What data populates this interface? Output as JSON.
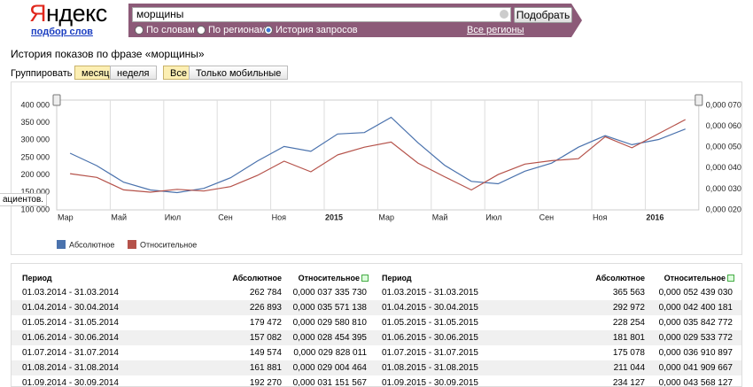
{
  "header": {
    "logo": "Яндекс",
    "subtitle": "подбор слов",
    "query": "морщины",
    "button": "Подобрать",
    "options": [
      "По словам",
      "По регионам",
      "История запросов"
    ],
    "selected_option": 2,
    "regions": "Все регионы"
  },
  "page_title": "История показов по фразе «морщины»",
  "grouping": {
    "label": "Группировать по:",
    "options": [
      "месяц",
      "неделя"
    ],
    "active": 0
  },
  "device": {
    "options": [
      "Все",
      "Только мобильные"
    ],
    "active": 0
  },
  "tooltip_fragment": "ациентов.",
  "chart_data": {
    "type": "line",
    "categories": [
      "Мар",
      null,
      "Май",
      null,
      "Июл",
      null,
      "Сен",
      null,
      "Ноя",
      null,
      "2015",
      null,
      "Мар",
      null,
      "Май",
      null,
      "Июл",
      null,
      "Сен",
      null,
      "Ноя",
      null,
      "2016",
      null
    ],
    "series": [
      {
        "name": "Абсолютное",
        "color": "#4a72ad",
        "axis": "y",
        "values": [
          262784,
          226893,
          179472,
          157082,
          149574,
          161881,
          192270,
          240000,
          282000,
          268000,
          318000,
          322000,
          365563,
          292972,
          228254,
          181801,
          175078,
          211044,
          234127,
          280000,
          313000,
          287000,
          302000,
          332000
        ]
      },
      {
        "name": "Относительное",
        "color": "#b5524a",
        "axis": "y2",
        "values": [
          3.733573e-05,
          3.557114e-05,
          2.958081e-05,
          2.84544e-05,
          2.9828e-05,
          2.900446e-05,
          3.115157e-05,
          3.65e-05,
          4.33e-05,
          3.82e-05,
          4.63e-05,
          5e-05,
          5.243903e-05,
          4.240018e-05,
          3.584277e-05,
          2.953377e-05,
          3.69109e-05,
          4.190967e-05,
          4.356813e-05,
          4.45e-05,
          5.5e-05,
          4.97e-05,
          5.65e-05,
          6.32e-05
        ]
      }
    ],
    "ylim": [
      100000,
      400000
    ],
    "yticks": [
      {
        "value": 100000,
        "label": "100 000"
      },
      {
        "value": 150000,
        "label": "150 000"
      },
      {
        "value": 200000,
        "label": "200 000"
      },
      {
        "value": 250000,
        "label": "250 000"
      },
      {
        "value": 300000,
        "label": "300 000"
      },
      {
        "value": 350000,
        "label": "350 000"
      },
      {
        "value": 400000,
        "label": "400 000"
      }
    ],
    "y2lim": [
      2e-05,
      7e-05
    ],
    "y2ticks": [
      {
        "value": 2e-05,
        "label": "0,000 020"
      },
      {
        "value": 3e-05,
        "label": "0,000 030"
      },
      {
        "value": 4e-05,
        "label": "0,000 040"
      },
      {
        "value": 5e-05,
        "label": "0,000 050"
      },
      {
        "value": 6e-05,
        "label": "0,000 060"
      },
      {
        "value": 7e-05,
        "label": "0,000 070"
      }
    ],
    "grid": "x",
    "legend": "bottom-left"
  },
  "table": {
    "columns": [
      "Период",
      "Абсолютное",
      "Относительное"
    ],
    "left_rows": [
      [
        "01.03.2014 - 31.03.2014",
        "262 784",
        "0,000 037 335 730"
      ],
      [
        "01.04.2014 - 30.04.2014",
        "226 893",
        "0,000 035 571 138"
      ],
      [
        "01.05.2014 - 31.05.2014",
        "179 472",
        "0,000 029 580 810"
      ],
      [
        "01.06.2014 - 30.06.2014",
        "157 082",
        "0,000 028 454 395"
      ],
      [
        "01.07.2014 - 31.07.2014",
        "149 574",
        "0,000 029 828 011"
      ],
      [
        "01.08.2014 - 31.08.2014",
        "161 881",
        "0,000 029 004 464"
      ],
      [
        "01.09.2014 - 30.09.2014",
        "192 270",
        "0,000 031 151 567"
      ]
    ],
    "right_rows": [
      [
        "01.03.2015 - 31.03.2015",
        "365 563",
        "0,000 052 439 030"
      ],
      [
        "01.04.2015 - 30.04.2015",
        "292 972",
        "0,000 042 400 181"
      ],
      [
        "01.05.2015 - 31.05.2015",
        "228 254",
        "0,000 035 842 772"
      ],
      [
        "01.06.2015 - 30.06.2015",
        "181 801",
        "0,000 029 533 772"
      ],
      [
        "01.07.2015 - 31.07.2015",
        "175 078",
        "0,000 036 910 897"
      ],
      [
        "01.08.2015 - 31.08.2015",
        "211 044",
        "0,000 041 909 667"
      ],
      [
        "01.09.2015 - 30.09.2015",
        "234 127",
        "0,000 043 568 127"
      ]
    ]
  }
}
